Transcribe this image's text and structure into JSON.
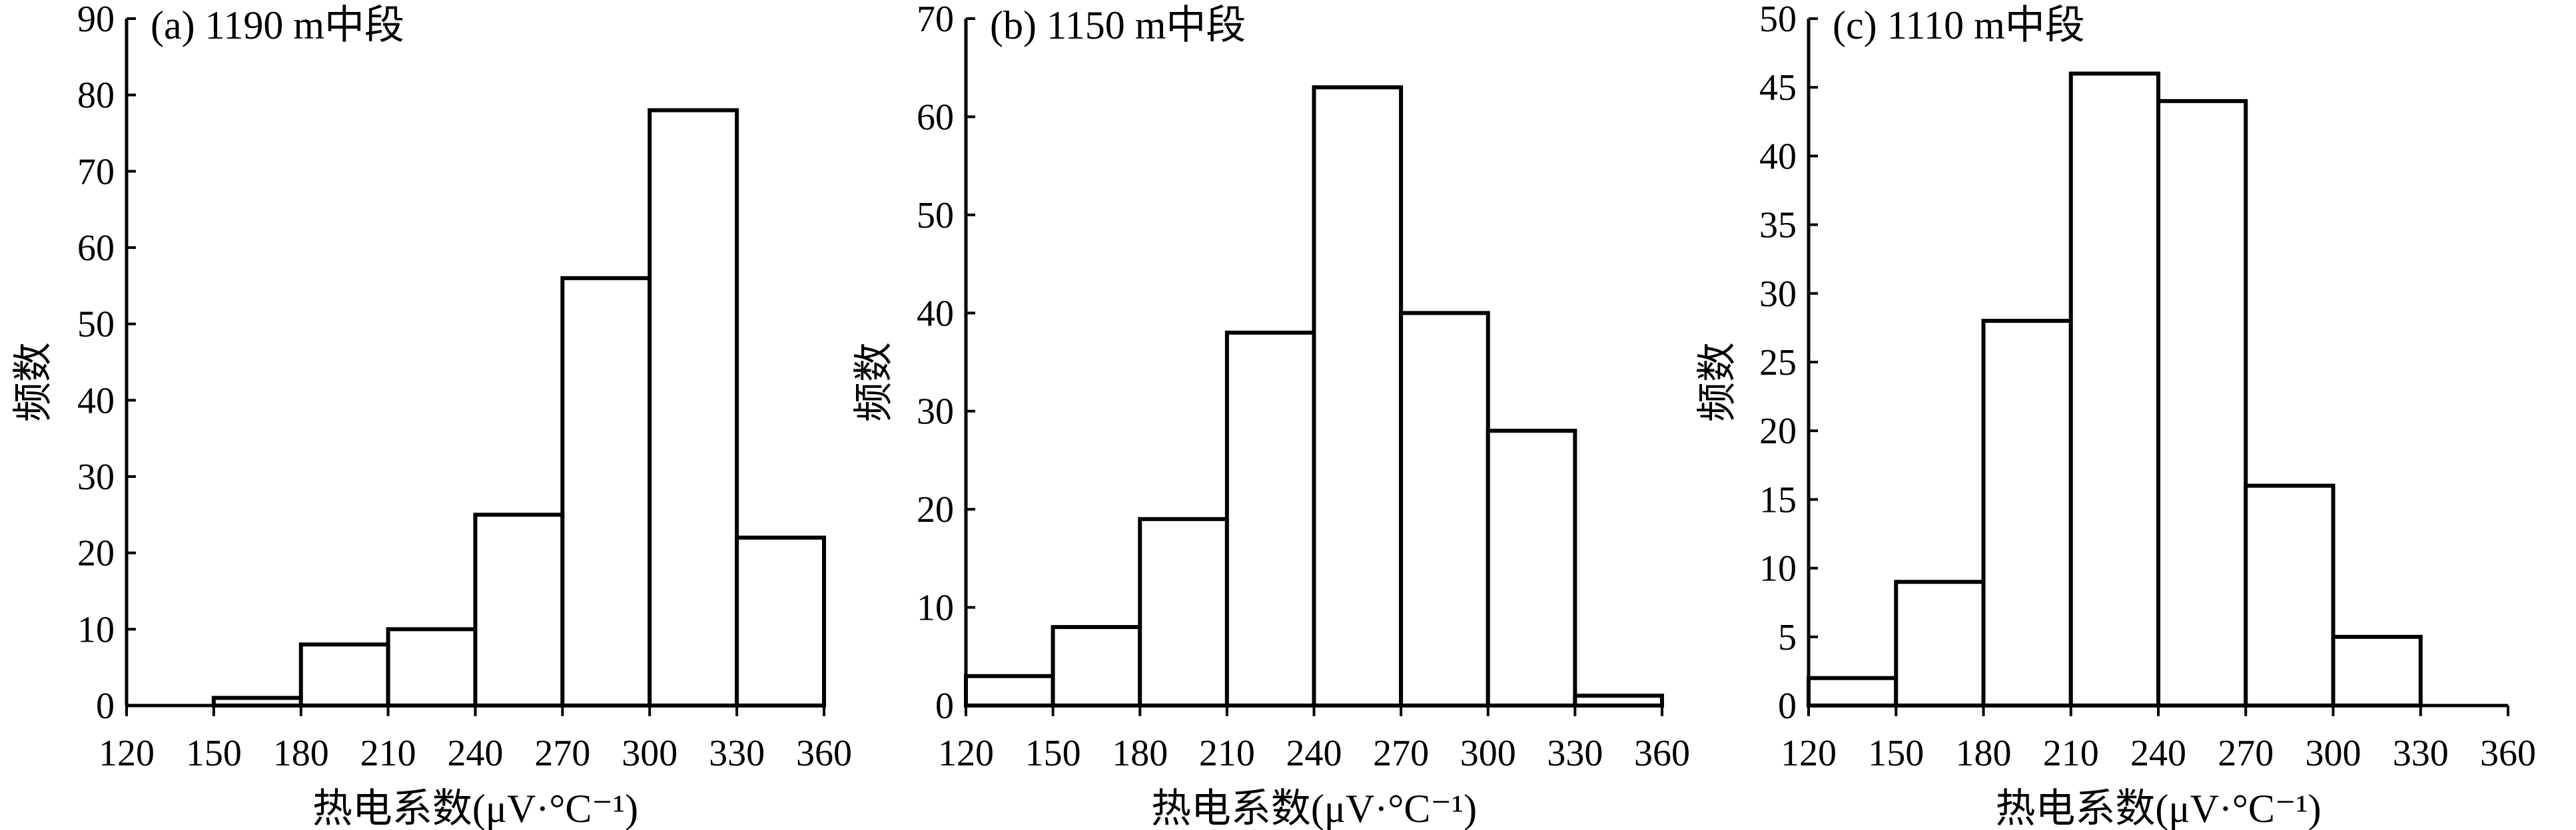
{
  "chart_data": [
    {
      "type": "bar",
      "title": "(a) 1190 m中段",
      "xlabel": "热电系数(μV·°C⁻¹)",
      "ylabel": "频数",
      "xlim": [
        120,
        360
      ],
      "ylim": [
        0,
        90
      ],
      "xticks": [
        120,
        150,
        180,
        210,
        240,
        270,
        300,
        330,
        360
      ],
      "yticks": [
        0,
        10,
        20,
        30,
        40,
        50,
        60,
        70,
        80,
        90
      ],
      "bins": [
        [
          150,
          180
        ],
        [
          180,
          210
        ],
        [
          210,
          240
        ],
        [
          240,
          270
        ],
        [
          270,
          300
        ],
        [
          300,
          330
        ],
        [
          330,
          360
        ]
      ],
      "values": [
        1,
        8,
        10,
        25,
        56,
        78,
        22
      ]
    },
    {
      "type": "bar",
      "title": "(b) 1150 m中段",
      "xlabel": "热电系数(μV·°C⁻¹)",
      "ylabel": "频数",
      "xlim": [
        120,
        360
      ],
      "ylim": [
        0,
        70
      ],
      "xticks": [
        120,
        150,
        180,
        210,
        240,
        270,
        300,
        330,
        360
      ],
      "yticks": [
        0,
        10,
        20,
        30,
        40,
        50,
        60,
        70
      ],
      "bins": [
        [
          120,
          150
        ],
        [
          150,
          180
        ],
        [
          180,
          210
        ],
        [
          210,
          240
        ],
        [
          240,
          270
        ],
        [
          270,
          300
        ],
        [
          300,
          330
        ],
        [
          330,
          360
        ]
      ],
      "values": [
        3,
        8,
        19,
        38,
        63,
        40,
        28,
        1
      ]
    },
    {
      "type": "bar",
      "title": "(c) 1110 m中段",
      "xlabel": "热电系数(μV·°C⁻¹)",
      "ylabel": "频数",
      "xlim": [
        120,
        360
      ],
      "ylim": [
        0,
        50
      ],
      "xticks": [
        120,
        150,
        180,
        210,
        240,
        270,
        300,
        330,
        360
      ],
      "yticks": [
        0,
        5,
        10,
        15,
        20,
        25,
        30,
        35,
        40,
        45,
        50
      ],
      "bins": [
        [
          120,
          150
        ],
        [
          150,
          180
        ],
        [
          180,
          210
        ],
        [
          210,
          240
        ],
        [
          240,
          270
        ],
        [
          270,
          300
        ],
        [
          300,
          330
        ]
      ],
      "values": [
        2,
        9,
        28,
        46,
        44,
        16,
        5
      ]
    }
  ]
}
